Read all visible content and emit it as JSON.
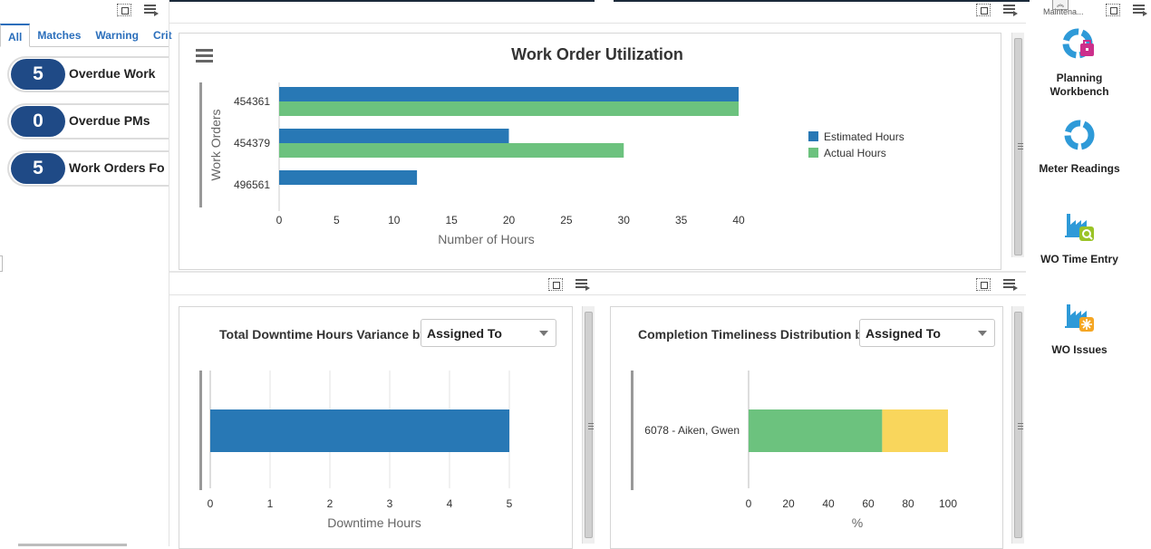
{
  "left_pane": {
    "tabs": [
      "All",
      "Matches",
      "Warning",
      "Crit"
    ],
    "kpis": [
      {
        "count": "5",
        "label": "Overdue Work"
      },
      {
        "count": "0",
        "label": "Overdue PMs"
      },
      {
        "count": "5",
        "label": "Work Orders Fo"
      }
    ]
  },
  "utilization_chart": {
    "menu_icon": "hamburger-menu-icon",
    "chart_data": {
      "type": "bar",
      "orientation": "horizontal",
      "title": "Work Order Utilization",
      "xlabel": "Number of Hours",
      "ylabel": "Work Orders",
      "categories": [
        "454361",
        "454379",
        "496561"
      ],
      "series": [
        {
          "name": "Estimated Hours",
          "values": [
            40,
            20,
            12
          ],
          "color": "#2878b5"
        },
        {
          "name": "Actual Hours",
          "values": [
            40,
            30,
            null
          ],
          "color": "#6cc27e"
        }
      ],
      "xlim": [
        0,
        40
      ],
      "xticks": [
        "0",
        "5",
        "10",
        "15",
        "20",
        "25",
        "30",
        "35",
        "40"
      ],
      "legend": "right"
    }
  },
  "downtime_chart": {
    "title": "Total Downtime Hours Variance by",
    "select_value": "Assigned To",
    "chart_data": {
      "type": "bar",
      "orientation": "horizontal",
      "xlabel": "Downtime Hours",
      "categories": [
        ""
      ],
      "values": [
        5
      ],
      "color": "#2878b5",
      "xlim": [
        0,
        5
      ],
      "xticks": [
        "0",
        "1",
        "2",
        "3",
        "4",
        "5"
      ],
      "grid": true
    }
  },
  "timeliness_chart": {
    "title": "Completion Timeliness Distribution by",
    "select_value": "Assigned To",
    "chart_data": {
      "type": "bar",
      "orientation": "horizontal",
      "stacked": true,
      "xlabel": "%",
      "categories": [
        "6078 - Aiken, Gwen"
      ],
      "series": [
        {
          "values": [
            67
          ],
          "color": "#6cc27e"
        },
        {
          "values": [
            33
          ],
          "color": "#f9d65c"
        }
      ],
      "xlim": [
        0,
        100
      ],
      "xticks": [
        "0",
        "20",
        "40",
        "60",
        "80",
        "100"
      ]
    }
  },
  "right_pane": {
    "header_label": "Maintena...",
    "apps": [
      {
        "label": "Planning Workbench",
        "icon": "planning-workbench-icon"
      },
      {
        "label": "Meter Readings",
        "icon": "meter-readings-icon"
      },
      {
        "label": "WO Time Entry",
        "icon": "wo-time-entry-icon"
      },
      {
        "label": "WO Issues",
        "icon": "wo-issues-icon"
      }
    ]
  }
}
